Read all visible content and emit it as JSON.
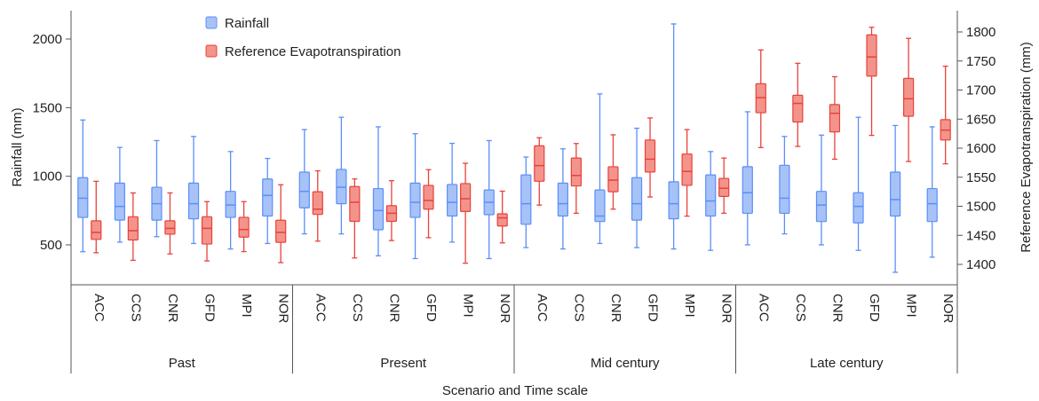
{
  "chart_data": {
    "type": "boxplot",
    "xlabel": "Scenario and Time scale",
    "ylabel_left": "Rainfall (mm)",
    "ylabel_right": "Reference Evapotranspiration (mm)",
    "ylim_left": [
      200,
      2150
    ],
    "ylim_right": [
      1370,
      1826
    ],
    "yticks_left": [
      500,
      1000,
      1500,
      2000
    ],
    "yticks_right": [
      1400,
      1450,
      1500,
      1550,
      1600,
      1650,
      1700,
      1750,
      1800
    ],
    "legend_position": "top-left",
    "colors": {
      "rainfall": "#5b8ff9",
      "et": "#e8423a",
      "rainfall_fill": "#a7c2f7",
      "et_fill": "#f3948c"
    },
    "models": [
      "ACC",
      "CCS",
      "CNR",
      "GFD",
      "MPI",
      "NOR"
    ],
    "groups": [
      "Past",
      "Present",
      "Mid century",
      "Late century"
    ],
    "series": [
      {
        "name": "Rainfall",
        "axis": "left",
        "boxes": [
          {
            "group": "Past",
            "model": "ACC",
            "min": 450,
            "q1": 700,
            "median": 840,
            "q3": 990,
            "max": 1410
          },
          {
            "group": "Past",
            "model": "CCS",
            "min": 520,
            "q1": 680,
            "median": 780,
            "q3": 950,
            "max": 1210
          },
          {
            "group": "Past",
            "model": "CNR",
            "min": 560,
            "q1": 680,
            "median": 800,
            "q3": 920,
            "max": 1260
          },
          {
            "group": "Past",
            "model": "GFD",
            "min": 510,
            "q1": 690,
            "median": 800,
            "q3": 950,
            "max": 1290
          },
          {
            "group": "Past",
            "model": "MPI",
            "min": 470,
            "q1": 700,
            "median": 790,
            "q3": 890,
            "max": 1180
          },
          {
            "group": "Past",
            "model": "NOR",
            "min": 510,
            "q1": 710,
            "median": 860,
            "q3": 980,
            "max": 1130
          },
          {
            "group": "Present",
            "model": "ACC",
            "min": 580,
            "q1": 770,
            "median": 890,
            "q3": 1030,
            "max": 1340
          },
          {
            "group": "Present",
            "model": "CCS",
            "min": 580,
            "q1": 800,
            "median": 920,
            "q3": 1050,
            "max": 1430
          },
          {
            "group": "Present",
            "model": "CNR",
            "min": 420,
            "q1": 610,
            "median": 750,
            "q3": 910,
            "max": 1360
          },
          {
            "group": "Present",
            "model": "GFD",
            "min": 400,
            "q1": 700,
            "median": 810,
            "q3": 950,
            "max": 1310
          },
          {
            "group": "Present",
            "model": "MPI",
            "min": 520,
            "q1": 710,
            "median": 810,
            "q3": 940,
            "max": 1240
          },
          {
            "group": "Present",
            "model": "NOR",
            "min": 400,
            "q1": 720,
            "median": 810,
            "q3": 900,
            "max": 1260
          },
          {
            "group": "Mid century",
            "model": "ACC",
            "min": 480,
            "q1": 650,
            "median": 800,
            "q3": 1010,
            "max": 1140
          },
          {
            "group": "Mid century",
            "model": "CCS",
            "min": 470,
            "q1": 710,
            "median": 800,
            "q3": 950,
            "max": 1200
          },
          {
            "group": "Mid century",
            "model": "CNR",
            "min": 510,
            "q1": 670,
            "median": 710,
            "q3": 900,
            "max": 1600
          },
          {
            "group": "Mid century",
            "model": "GFD",
            "min": 480,
            "q1": 680,
            "median": 800,
            "q3": 990,
            "max": 1350
          },
          {
            "group": "Mid century",
            "model": "MPI",
            "min": 470,
            "q1": 690,
            "median": 800,
            "q3": 960,
            "max": 2110
          },
          {
            "group": "Mid century",
            "model": "NOR",
            "min": 460,
            "q1": 710,
            "median": 820,
            "q3": 1010,
            "max": 1180
          },
          {
            "group": "Late century",
            "model": "ACC",
            "min": 500,
            "q1": 730,
            "median": 880,
            "q3": 1070,
            "max": 1470
          },
          {
            "group": "Late century",
            "model": "CCS",
            "min": 580,
            "q1": 730,
            "median": 840,
            "q3": 1080,
            "max": 1290
          },
          {
            "group": "Late century",
            "model": "CNR",
            "min": 500,
            "q1": 670,
            "median": 790,
            "q3": 890,
            "max": 1300
          },
          {
            "group": "Late century",
            "model": "GFD",
            "min": 460,
            "q1": 660,
            "median": 780,
            "q3": 880,
            "max": 1430
          },
          {
            "group": "Late century",
            "model": "MPI",
            "min": 300,
            "q1": 710,
            "median": 830,
            "q3": 1030,
            "max": 1370
          },
          {
            "group": "Late century",
            "model": "NOR",
            "min": 410,
            "q1": 670,
            "median": 800,
            "q3": 910,
            "max": 1360
          }
        ]
      },
      {
        "name": "Reference Evapotranspiration",
        "axis": "right",
        "boxes": [
          {
            "group": "Past",
            "model": "ACC",
            "min": 1420,
            "q1": 1443,
            "median": 1455,
            "q3": 1475,
            "max": 1543
          },
          {
            "group": "Past",
            "model": "CCS",
            "min": 1407,
            "q1": 1442,
            "median": 1458,
            "q3": 1482,
            "max": 1523
          },
          {
            "group": "Past",
            "model": "CNR",
            "min": 1418,
            "q1": 1452,
            "median": 1462,
            "q3": 1475,
            "max": 1523
          },
          {
            "group": "Past",
            "model": "GFD",
            "min": 1406,
            "q1": 1435,
            "median": 1462,
            "q3": 1482,
            "max": 1508
          },
          {
            "group": "Past",
            "model": "MPI",
            "min": 1422,
            "q1": 1447,
            "median": 1460,
            "q3": 1481,
            "max": 1508
          },
          {
            "group": "Past",
            "model": "NOR",
            "min": 1403,
            "q1": 1438,
            "median": 1455,
            "q3": 1476,
            "max": 1537
          },
          {
            "group": "Present",
            "model": "ACC",
            "min": 1440,
            "q1": 1486,
            "median": 1495,
            "q3": 1525,
            "max": 1561
          },
          {
            "group": "Present",
            "model": "CCS",
            "min": 1411,
            "q1": 1474,
            "median": 1507,
            "q3": 1534,
            "max": 1547
          },
          {
            "group": "Present",
            "model": "CNR",
            "min": 1441,
            "q1": 1474,
            "median": 1488,
            "q3": 1501,
            "max": 1544
          },
          {
            "group": "Present",
            "model": "GFD",
            "min": 1446,
            "q1": 1495,
            "median": 1510,
            "q3": 1536,
            "max": 1563
          },
          {
            "group": "Present",
            "model": "MPI",
            "min": 1402,
            "q1": 1491,
            "median": 1513,
            "q3": 1539,
            "max": 1574
          },
          {
            "group": "Present",
            "model": "NOR",
            "min": 1437,
            "q1": 1466,
            "median": 1480,
            "q3": 1487,
            "max": 1526
          },
          {
            "group": "Mid century",
            "model": "ACC",
            "min": 1502,
            "q1": 1543,
            "median": 1570,
            "q3": 1604,
            "max": 1618
          },
          {
            "group": "Mid century",
            "model": "CCS",
            "min": 1488,
            "q1": 1535,
            "median": 1553,
            "q3": 1583,
            "max": 1608
          },
          {
            "group": "Mid century",
            "model": "CNR",
            "min": 1495,
            "q1": 1525,
            "median": 1545,
            "q3": 1568,
            "max": 1623
          },
          {
            "group": "Mid century",
            "model": "GFD",
            "min": 1516,
            "q1": 1559,
            "median": 1581,
            "q3": 1614,
            "max": 1652
          },
          {
            "group": "Mid century",
            "model": "MPI",
            "min": 1483,
            "q1": 1536,
            "median": 1560,
            "q3": 1590,
            "max": 1632
          },
          {
            "group": "Mid century",
            "model": "NOR",
            "min": 1488,
            "q1": 1517,
            "median": 1531,
            "q3": 1548,
            "max": 1583
          },
          {
            "group": "Late century",
            "model": "ACC",
            "min": 1601,
            "q1": 1661,
            "median": 1687,
            "q3": 1711,
            "max": 1769
          },
          {
            "group": "Late century",
            "model": "CCS",
            "min": 1603,
            "q1": 1645,
            "median": 1677,
            "q3": 1691,
            "max": 1746
          },
          {
            "group": "Late century",
            "model": "CNR",
            "min": 1581,
            "q1": 1628,
            "median": 1660,
            "q3": 1675,
            "max": 1723
          },
          {
            "group": "Late century",
            "model": "GFD",
            "min": 1622,
            "q1": 1724,
            "median": 1757,
            "q3": 1795,
            "max": 1808
          },
          {
            "group": "Late century",
            "model": "MPI",
            "min": 1577,
            "q1": 1655,
            "median": 1685,
            "q3": 1720,
            "max": 1789
          },
          {
            "group": "Late century",
            "model": "NOR",
            "min": 1573,
            "q1": 1614,
            "median": 1631,
            "q3": 1649,
            "max": 1741
          }
        ]
      }
    ]
  }
}
